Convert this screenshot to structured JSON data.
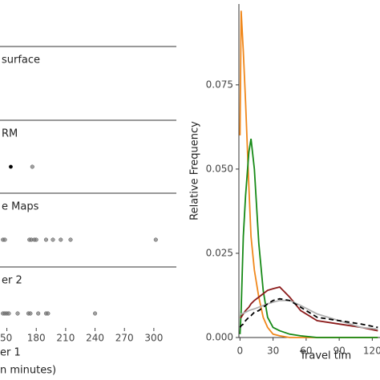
{
  "chart_data": [
    {
      "type": "dot",
      "facets": [
        {
          "title": "surface",
          "values": []
        },
        {
          "title": "RM",
          "values": [
            154,
            176
          ],
          "colors": [
            "#000000",
            "#777777"
          ]
        },
        {
          "title": "e Maps",
          "values": [
            146,
            148,
            173,
            175,
            178,
            180,
            190,
            197,
            205,
            215,
            302
          ]
        },
        {
          "title": "er 2",
          "values": [
            146,
            148,
            150,
            152,
            161,
            172,
            174,
            182,
            190,
            192,
            240
          ]
        }
      ],
      "color": "#777777",
      "xlim": [
        143,
        323
      ],
      "xticks": [
        {
          "value": 150,
          "label": "50"
        },
        180,
        210,
        240,
        270,
        300
      ],
      "xlabel_lines": [
        "er 1",
        "n minutes)"
      ]
    },
    {
      "type": "line",
      "ylabel": "Relative Frequency",
      "xlabel": "Travel tim",
      "x": [
        0,
        1,
        3,
        5,
        8,
        10,
        13,
        17,
        21,
        25,
        30,
        36,
        45,
        55,
        70,
        90,
        110,
        125
      ],
      "series": [
        {
          "color": "#f0881c",
          "values": [
            0.06,
            0.097,
            0.085,
            0.07,
            0.045,
            0.03,
            0.02,
            0.012,
            0.006,
            0.003,
            0.001,
            0.0005,
            0,
            0,
            0,
            0,
            0,
            0
          ]
        },
        {
          "color": "#178a17",
          "values": [
            0.001,
            0.008,
            0.03,
            0.042,
            0.055,
            0.059,
            0.05,
            0.028,
            0.014,
            0.006,
            0.003,
            0.002,
            0.001,
            0.0005,
            0,
            0,
            0,
            0
          ]
        },
        {
          "color": "#8b1a1a",
          "values": [
            0.006,
            0.006,
            0.007,
            0.008,
            0.009,
            0.01,
            0.011,
            0.012,
            0.013,
            0.014,
            0.0145,
            0.015,
            0.012,
            0.008,
            0.005,
            0.004,
            0.003,
            0.002
          ]
        },
        {
          "color": "#b0b0b0",
          "values": [
            0.007,
            0.007,
            0.0072,
            0.0075,
            0.008,
            0.0082,
            0.0085,
            0.009,
            0.0095,
            0.01,
            0.0105,
            0.011,
            0.011,
            0.0095,
            0.007,
            0.005,
            0.003,
            0.0025
          ]
        },
        {
          "color": "#000000",
          "dash": true,
          "values": [
            0.003,
            0.0035,
            0.004,
            0.005,
            0.006,
            0.0065,
            0.0075,
            0.008,
            0.009,
            0.01,
            0.011,
            0.0115,
            0.011,
            0.009,
            0.006,
            0.005,
            0.004,
            0.003
          ]
        }
      ],
      "xlim": [
        -1,
        127
      ],
      "ylim": [
        0,
        0.099
      ],
      "xticks": [
        0,
        30,
        60,
        90,
        120
      ],
      "yticks": [
        {
          "value": 0,
          "label": "0.000"
        },
        {
          "value": 0.025,
          "label": "0.025"
        },
        {
          "value": 0.05,
          "label": "0.050"
        },
        {
          "value": 0.075,
          "label": "0.075"
        }
      ]
    }
  ]
}
